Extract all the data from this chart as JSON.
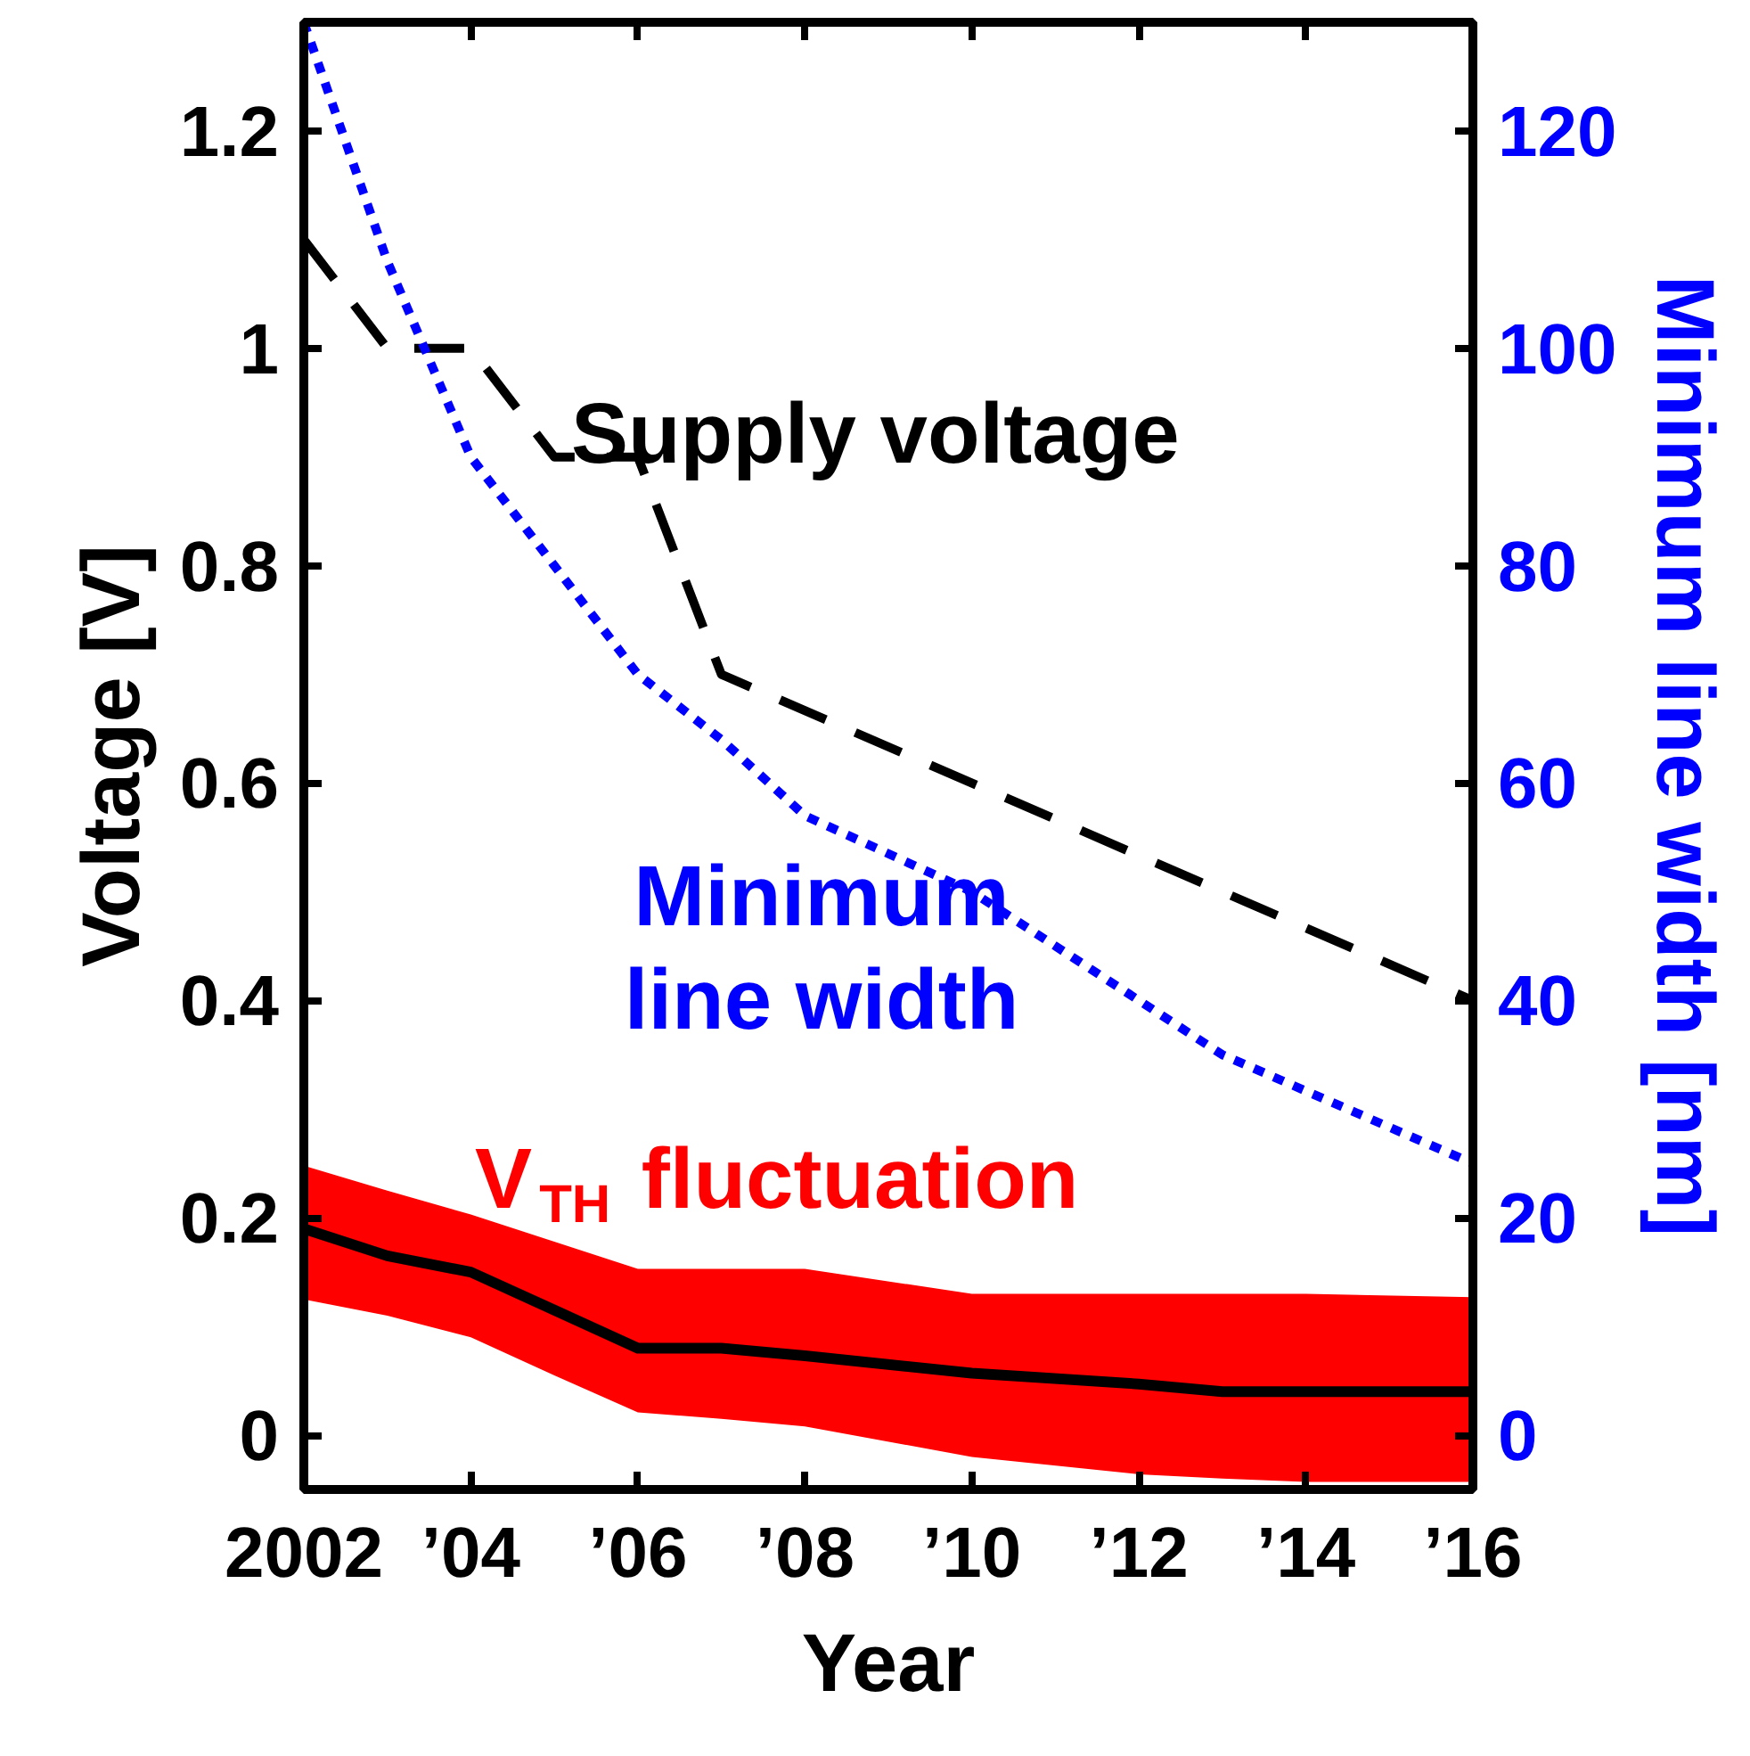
{
  "chart_data": {
    "type": "line",
    "xlabel": "Year",
    "ylabel": "Voltage [V]",
    "y2label": "Minimum line width [nm]",
    "xlim": [
      2002,
      2016
    ],
    "xticks": [
      2002,
      {
        "value": 2004,
        "label": "’04"
      },
      {
        "value": 2006,
        "label": "’06"
      },
      {
        "value": 2008,
        "label": "’08"
      },
      {
        "value": 2010,
        "label": "’10"
      },
      {
        "value": 2012,
        "label": "’12"
      },
      {
        "value": 2014,
        "label": "’14"
      },
      {
        "value": 2016,
        "label": "’16"
      }
    ],
    "ylim": [
      -0.05,
      1.3
    ],
    "yticks": [
      0,
      0.2,
      0.4,
      0.6,
      0.8,
      1,
      1.2
    ],
    "y2lim": [
      -5,
      130
    ],
    "y2ticks": [
      0,
      20,
      40,
      60,
      80,
      100,
      120
    ],
    "grid": false,
    "series": [
      {
        "name": "Supply voltage",
        "color": "#000000",
        "line_style": "dashed",
        "x": [
          2002,
          2003,
          2004,
          2005,
          2006,
          2007,
          2016
        ],
        "values": [
          1.1,
          1.0,
          1.0,
          0.9,
          0.9,
          0.7,
          0.4
        ]
      },
      {
        "name": "Minimum\nline width",
        "color": "#0000ff",
        "line_style": "dotted",
        "axis": "y2",
        "x": [
          2002,
          2003,
          2004,
          2005,
          2006,
          2007,
          2008,
          2010,
          2013,
          2016
        ],
        "values": [
          130,
          108,
          90,
          80,
          70,
          64,
          57,
          50,
          35,
          25
        ]
      },
      {
        "name": "V$_{TH}$ fluctuation",
        "color": "#000000",
        "line_style": "solid",
        "x": [
          2002,
          2003,
          2004,
          2005,
          2006,
          2007,
          2008,
          2010,
          2012,
          2013,
          2014,
          2016
        ],
        "values": [
          0.19,
          0.165,
          0.15,
          0.115,
          0.08,
          0.08,
          0.073,
          0.057,
          0.047,
          0.04,
          0.04,
          0.04
        ],
        "lower": [
          0.125,
          0.11,
          0.09,
          0.055,
          0.021,
          0.015,
          0.008,
          -0.02,
          -0.036,
          -0.04,
          -0.043,
          -0.043
        ],
        "upper": [
          0.248,
          0.225,
          0.203,
          0.178,
          0.153,
          0.153,
          0.153,
          0.13,
          0.13,
          0.13,
          0.13,
          0.127
        ]
      }
    ]
  }
}
